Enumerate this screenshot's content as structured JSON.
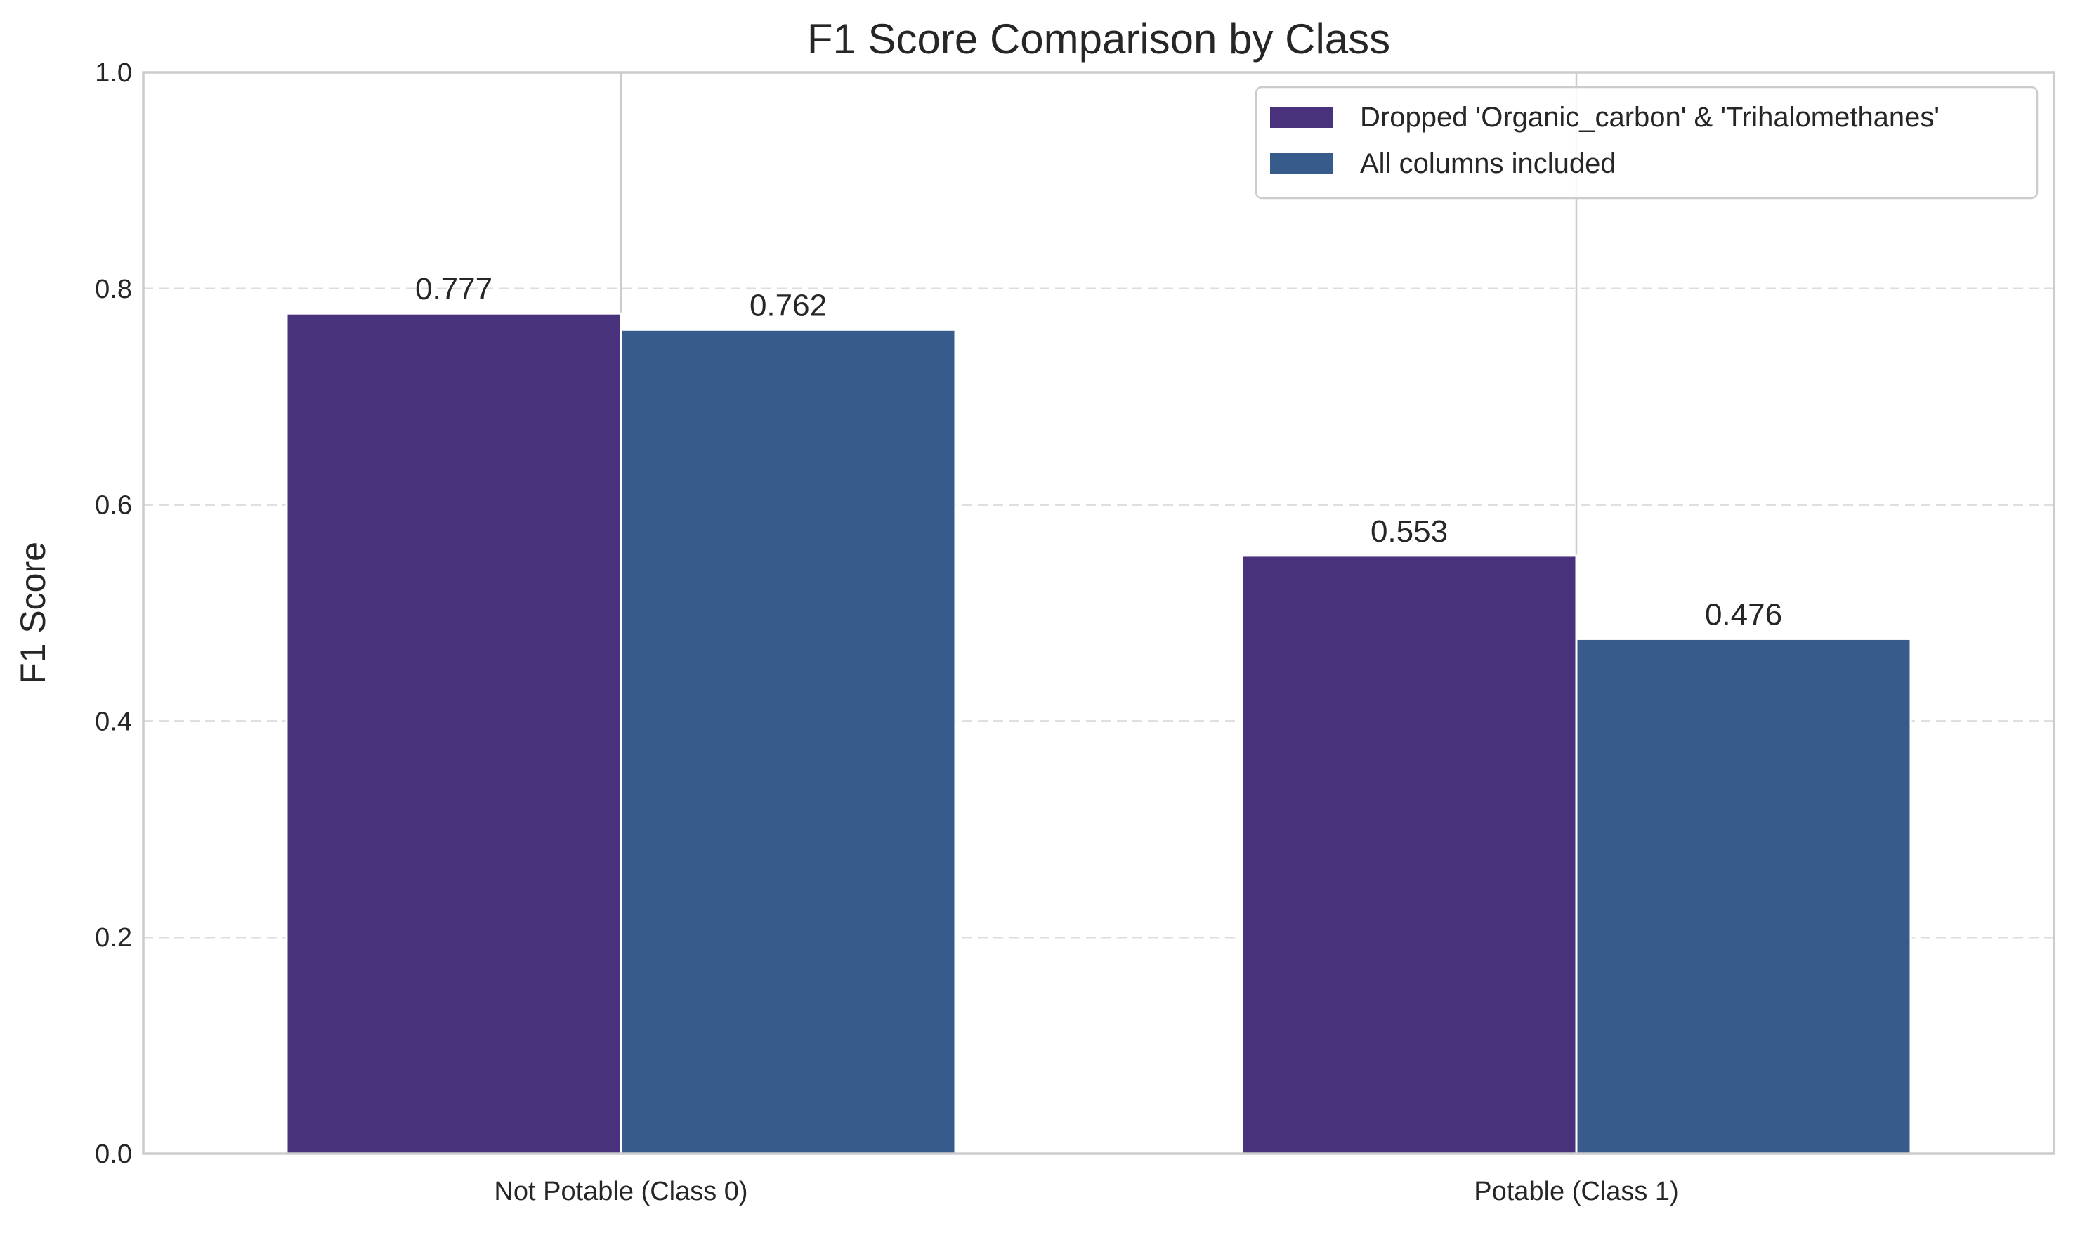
{
  "chart_data": {
    "type": "bar",
    "title": "F1 Score Comparison by Class",
    "xlabel": "",
    "ylabel": "F1 Score",
    "categories": [
      "Not Potable (Class 0)",
      "Potable (Class 1)"
    ],
    "series": [
      {
        "name": "Dropped 'Organic_carbon' & 'Trihalomethanes'",
        "values": [
          0.777,
          0.553
        ],
        "labels": [
          "0.777",
          "0.553"
        ],
        "color": "#48327c"
      },
      {
        "name": "All columns included",
        "values": [
          0.762,
          0.476
        ],
        "labels": [
          "0.762",
          "0.476"
        ],
        "color": "#375c8c"
      }
    ],
    "ylim": [
      0,
      1.0
    ],
    "yticks": [
      {
        "value": 0.0,
        "label": "0.0"
      },
      {
        "value": 0.2,
        "label": "0.2"
      },
      {
        "value": 0.4,
        "label": "0.4"
      },
      {
        "value": 0.6,
        "label": "0.6"
      },
      {
        "value": 0.8,
        "label": "0.8"
      },
      {
        "value": 1.0,
        "label": "1.0"
      }
    ],
    "grid": {
      "y": true,
      "style": "dashed"
    },
    "legend_position": "top-right"
  }
}
